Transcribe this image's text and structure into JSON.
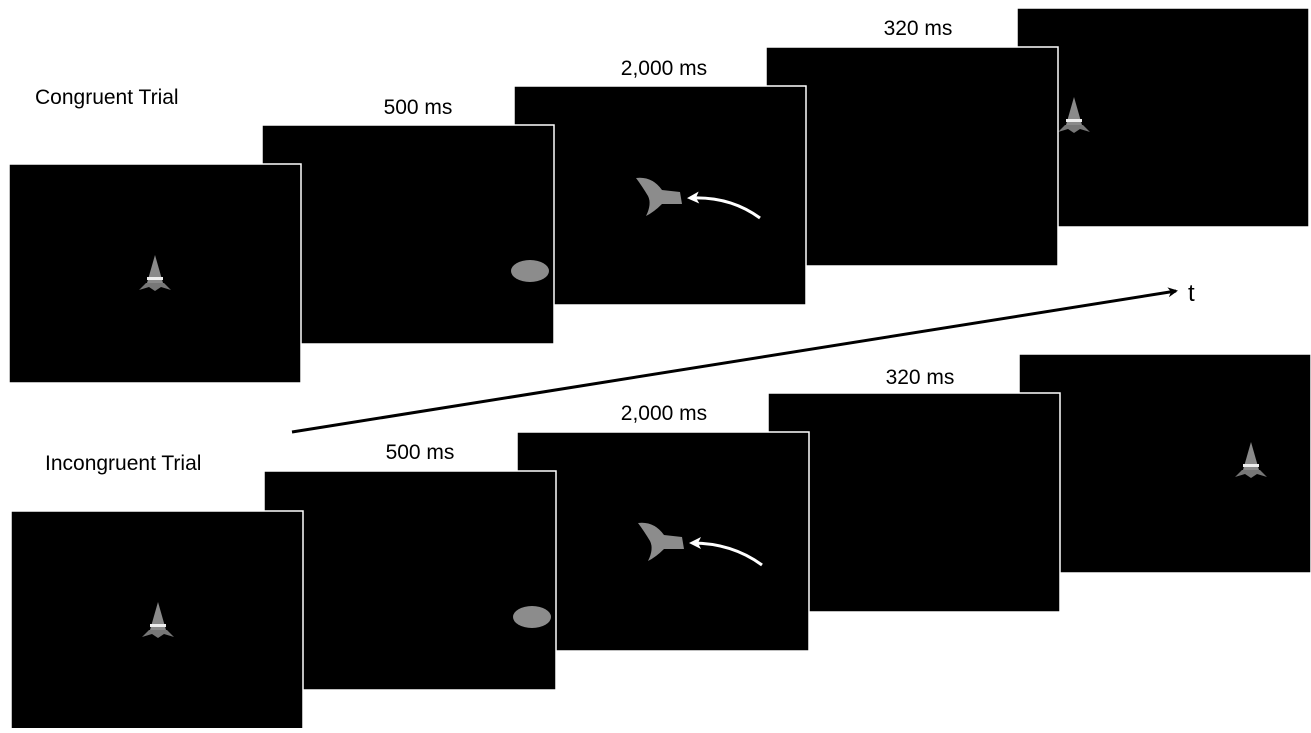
{
  "trials": [
    {
      "label": "Congruent Trial",
      "durations": [
        "500 ms",
        "2,000 ms",
        "320 ms"
      ]
    },
    {
      "label": "Incongruent Trial",
      "durations": [
        "500 ms",
        "2,000 ms",
        "320 ms"
      ]
    }
  ],
  "time_axis": {
    "label": "t"
  }
}
